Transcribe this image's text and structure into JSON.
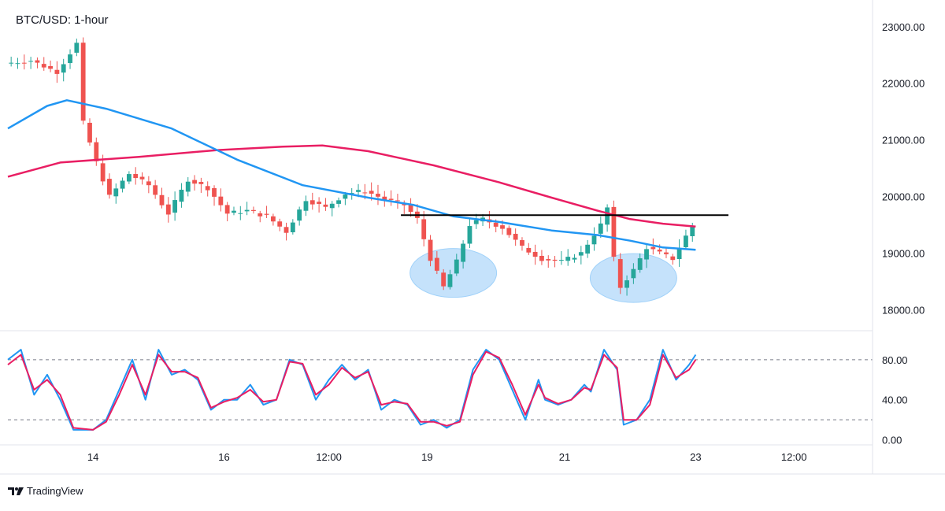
{
  "header": {
    "title": "BTC/USD: 1-hour"
  },
  "footer": {
    "brand": "TradingView"
  },
  "colors": {
    "up": "#26a69a",
    "down": "#ef5350",
    "ma_fast": "#2196f3",
    "ma_slow": "#e91e63",
    "stoch_k": "#2196f3",
    "stoch_d": "#e91e63",
    "resistance": "#000000",
    "highlight": "#bbdefb"
  },
  "chart_data": [
    {
      "type": "candlestick",
      "title": "BTC/USD: 1-hour",
      "ylim": [
        17700,
        23400
      ],
      "yticks": [
        "23000.00",
        "22000.00",
        "21000.00",
        "20000.00",
        "19000.00",
        "18000.00"
      ],
      "ytick_values": [
        23000,
        22000,
        21000,
        20000,
        19000,
        18000
      ],
      "xticks": [
        "14",
        "16",
        "12:00",
        "19",
        "21",
        "23",
        "12:00"
      ],
      "price_path": [
        [
          0,
          22350
        ],
        [
          4,
          22400
        ],
        [
          8,
          22200
        ],
        [
          11,
          22700
        ],
        [
          12,
          21300
        ],
        [
          14,
          20600
        ],
        [
          16,
          20000
        ],
        [
          19,
          20400
        ],
        [
          22,
          20200
        ],
        [
          25,
          19700
        ],
        [
          28,
          20300
        ],
        [
          31,
          20150
        ],
        [
          34,
          19700
        ],
        [
          37,
          19750
        ],
        [
          40,
          19650
        ],
        [
          43,
          19380
        ],
        [
          46,
          19950
        ],
        [
          49,
          19800
        ],
        [
          52,
          20050
        ],
        [
          55,
          20100
        ],
        [
          58,
          19950
        ],
        [
          61,
          19850
        ],
        [
          63,
          19600
        ],
        [
          65,
          18900
        ],
        [
          67,
          18400
        ],
        [
          69,
          18850
        ],
        [
          71,
          19500
        ],
        [
          73,
          19600
        ],
        [
          76,
          19450
        ],
        [
          79,
          19100
        ],
        [
          82,
          18900
        ],
        [
          85,
          18850
        ],
        [
          88,
          19000
        ],
        [
          91,
          19500
        ],
        [
          92,
          19800
        ],
        [
          93,
          18900
        ],
        [
          94,
          18400
        ],
        [
          96,
          18700
        ],
        [
          98,
          19100
        ],
        [
          100,
          19000
        ],
        [
          102,
          18900
        ],
        [
          104,
          19300
        ],
        [
          105,
          19480
        ]
      ],
      "ma_fast": [
        [
          0,
          21200
        ],
        [
          6,
          21600
        ],
        [
          9,
          21700
        ],
        [
          15,
          21550
        ],
        [
          25,
          21200
        ],
        [
          35,
          20650
        ],
        [
          45,
          20200
        ],
        [
          55,
          19980
        ],
        [
          62,
          19850
        ],
        [
          68,
          19650
        ],
        [
          75,
          19550
        ],
        [
          83,
          19400
        ],
        [
          90,
          19320
        ],
        [
          95,
          19220
        ],
        [
          100,
          19100
        ],
        [
          105,
          19060
        ]
      ],
      "ma_slow": [
        [
          0,
          20350
        ],
        [
          8,
          20600
        ],
        [
          20,
          20700
        ],
        [
          32,
          20820
        ],
        [
          42,
          20880
        ],
        [
          48,
          20900
        ],
        [
          55,
          20800
        ],
        [
          65,
          20550
        ],
        [
          75,
          20250
        ],
        [
          83,
          19980
        ],
        [
          90,
          19750
        ],
        [
          95,
          19600
        ],
        [
          100,
          19520
        ],
        [
          105,
          19470
        ]
      ],
      "resistance": {
        "level": 19670,
        "x_start": 60,
        "x_end": 110
      },
      "highlights": [
        {
          "x_center": 68,
          "y_center": 18650
        },
        {
          "x_center": 95.5,
          "y_center": 18560
        }
      ]
    },
    {
      "type": "line",
      "title": "",
      "ylim": [
        -5,
        105
      ],
      "yticks": [
        "80.00",
        "40.00",
        "0.00"
      ],
      "ytick_values": [
        80,
        40,
        0
      ],
      "bands": [
        80,
        20
      ],
      "series": [
        {
          "values": [
            [
              0,
              80
            ],
            [
              2,
              90
            ],
            [
              4,
              45
            ],
            [
              6,
              65
            ],
            [
              8,
              40
            ],
            [
              10,
              10
            ],
            [
              13,
              10
            ],
            [
              15,
              20
            ],
            [
              17,
              50
            ],
            [
              19,
              80
            ],
            [
              21,
              40
            ],
            [
              23,
              90
            ],
            [
              25,
              65
            ],
            [
              27,
              70
            ],
            [
              29,
              60
            ],
            [
              31,
              30
            ],
            [
              33,
              40
            ],
            [
              35,
              40
            ],
            [
              37,
              55
            ],
            [
              39,
              35
            ],
            [
              41,
              40
            ],
            [
              43,
              80
            ],
            [
              45,
              75
            ],
            [
              47,
              40
            ],
            [
              49,
              60
            ],
            [
              51,
              75
            ],
            [
              53,
              60
            ],
            [
              55,
              70
            ],
            [
              57,
              30
            ],
            [
              59,
              40
            ],
            [
              61,
              35
            ],
            [
              63,
              15
            ],
            [
              65,
              20
            ],
            [
              67,
              12
            ],
            [
              69,
              20
            ],
            [
              71,
              70
            ],
            [
              73,
              90
            ],
            [
              75,
              80
            ],
            [
              77,
              50
            ],
            [
              79,
              20
            ],
            [
              81,
              60
            ],
            [
              82,
              40
            ],
            [
              84,
              35
            ],
            [
              86,
              40
            ],
            [
              88,
              55
            ],
            [
              89,
              48
            ],
            [
              91,
              90
            ],
            [
              93,
              70
            ],
            [
              94,
              15
            ],
            [
              96,
              20
            ],
            [
              98,
              40
            ],
            [
              100,
              90
            ],
            [
              102,
              60
            ],
            [
              104,
              75
            ],
            [
              105,
              85
            ]
          ]
        },
        {
          "values": [
            [
              0,
              75
            ],
            [
              2,
              85
            ],
            [
              4,
              50
            ],
            [
              6,
              60
            ],
            [
              8,
              45
            ],
            [
              10,
              12
            ],
            [
              13,
              10
            ],
            [
              15,
              18
            ],
            [
              17,
              45
            ],
            [
              19,
              75
            ],
            [
              21,
              45
            ],
            [
              23,
              85
            ],
            [
              25,
              68
            ],
            [
              27,
              68
            ],
            [
              29,
              62
            ],
            [
              31,
              32
            ],
            [
              33,
              38
            ],
            [
              35,
              42
            ],
            [
              37,
              50
            ],
            [
              39,
              38
            ],
            [
              41,
              40
            ],
            [
              43,
              78
            ],
            [
              45,
              76
            ],
            [
              47,
              45
            ],
            [
              49,
              55
            ],
            [
              51,
              72
            ],
            [
              53,
              62
            ],
            [
              55,
              68
            ],
            [
              57,
              35
            ],
            [
              59,
              38
            ],
            [
              61,
              36
            ],
            [
              63,
              18
            ],
            [
              65,
              18
            ],
            [
              67,
              14
            ],
            [
              69,
              18
            ],
            [
              71,
              65
            ],
            [
              73,
              88
            ],
            [
              75,
              82
            ],
            [
              77,
              55
            ],
            [
              79,
              25
            ],
            [
              81,
              55
            ],
            [
              82,
              42
            ],
            [
              84,
              36
            ],
            [
              86,
              40
            ],
            [
              88,
              52
            ],
            [
              89,
              50
            ],
            [
              91,
              85
            ],
            [
              93,
              72
            ],
            [
              94,
              20
            ],
            [
              96,
              20
            ],
            [
              98,
              35
            ],
            [
              100,
              85
            ],
            [
              102,
              62
            ],
            [
              104,
              70
            ],
            [
              105,
              80
            ]
          ]
        }
      ]
    }
  ]
}
